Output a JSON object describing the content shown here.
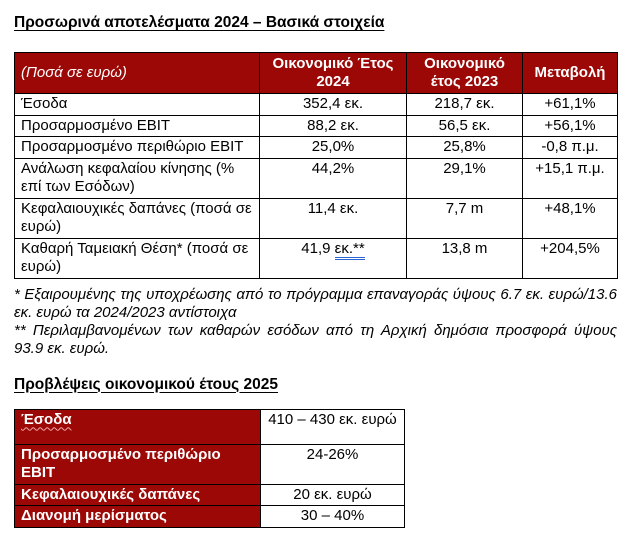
{
  "titles": {
    "preliminary": "Προσωρινά αποτελέσματα 2024 – Βασικά στοιχεία",
    "guidance": "Προβλέψεις οικονομικού έτους 2025"
  },
  "colors": {
    "header_red": "#9B0806",
    "border_black": "#000000",
    "grammar_underline_blue": "#2a63d4",
    "spell_wavy_pink": "#f0a9a9"
  },
  "table1": {
    "header": {
      "col_label": "(Ποσά σε ευρώ)",
      "col_2024": "Οικονομικό Έτος 2024",
      "col_2023": "Οικονομικό έτος 2023",
      "col_change": "Μεταβολή"
    },
    "rows": [
      {
        "label": "Έσοδα",
        "v2024": "352,4 εκ.",
        "v2023": "218,7 εκ.",
        "change": "+61,1%"
      },
      {
        "label": "Προσαρμοσμένο EBIT",
        "v2024": "88,2 εκ.",
        "v2023": "56,5 εκ.",
        "change": "+56,1%"
      },
      {
        "label": "Προσαρμοσμένο περιθώριο EBIT",
        "v2024": "25,0%",
        "v2023": "25,8%",
        "change": "-0,8 π.μ."
      },
      {
        "label": "Ανάλωση κεφαλαίου κίνησης (% επί των Εσόδων)",
        "v2024": "44,2%",
        "v2023": "29,1%",
        "change": "+15,1 π.μ."
      },
      {
        "label": "Κεφαλαιουχικές δαπάνες (ποσά σε ευρώ)",
        "v2024": "11,4 εκ.",
        "v2023": "7,7 m",
        "change": "+48,1%"
      },
      {
        "label": "Καθαρή Ταμειακή Θέση* (ποσά σε ευρώ)",
        "v2024_main": "41,9 ",
        "v2024_marked": "εκ.**",
        "v2023": "13,8 m",
        "change": "+204,5%"
      }
    ]
  },
  "footnotes": {
    "note1": "* Εξαιρουμένης της υποχρέωσης από το πρόγραμμα επαναγοράς ύψους 6.7 εκ. ευρώ/13.6 εκ. ευρώ τα 2024/2023 αντίστοιχα",
    "note2": "** Περιλαμβανομένων των καθαρών εσόδων από τη Αρχική δημόσια προσφορά ύψους 93.9 εκ. ευρώ."
  },
  "table2": {
    "rows": [
      {
        "label": "Έσοδα",
        "value": "410 – 430 εκ. ευρώ"
      },
      {
        "label": "Προσαρμοσμένο περιθώριο EBIT",
        "value": "24-26%"
      },
      {
        "label": "Κεφαλαιουχικές δαπάνες",
        "value": "20 εκ. ευρώ"
      },
      {
        "label": "Διανομή μερίσματος",
        "value": "30 – 40%"
      }
    ]
  }
}
